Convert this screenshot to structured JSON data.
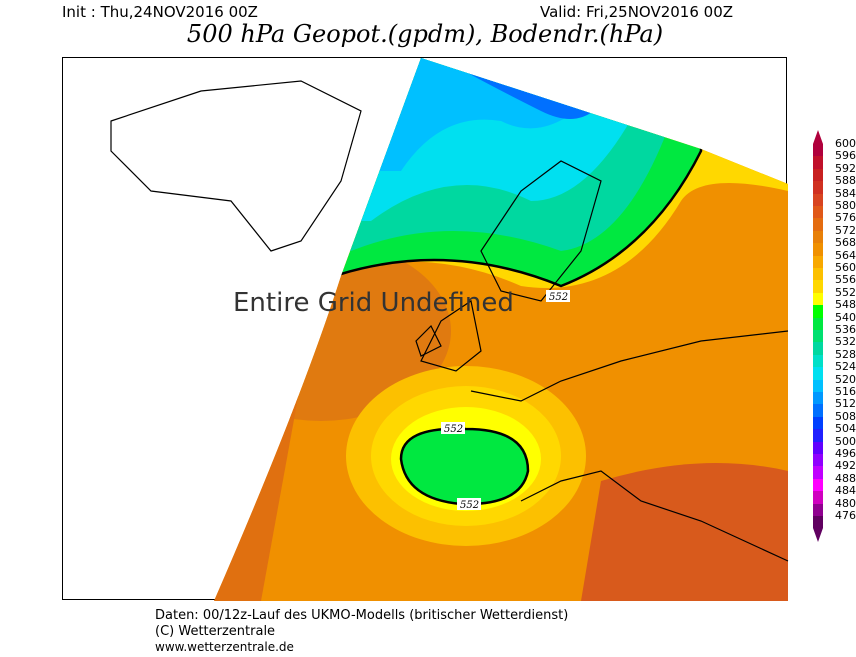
{
  "header": {
    "init": "Init : Thu,24NOV2016 00Z",
    "valid": "Valid: Fri,25NOV2016 00Z",
    "title": "500 hPa Geopot.(gpdm), Bodendr.(hPa)"
  },
  "map": {
    "overlay_text": "Entire Grid Undefined",
    "contour_labels": [
      "552",
      "552",
      "552"
    ]
  },
  "legend": {
    "labels": [
      "600",
      "596",
      "592",
      "588",
      "584",
      "580",
      "576",
      "572",
      "568",
      "564",
      "560",
      "556",
      "552",
      "548",
      "540",
      "536",
      "532",
      "528",
      "524",
      "520",
      "516",
      "512",
      "508",
      "504",
      "500",
      "496",
      "492",
      "488",
      "484",
      "480",
      "476"
    ],
    "colors": [
      "#b0003c",
      "#c0102a",
      "#c82020",
      "#d03020",
      "#d84420",
      "#e05818",
      "#e46c10",
      "#e88008",
      "#f09000",
      "#f8a800",
      "#fcc000",
      "#ffd800",
      "#ffff00",
      "#00ff00",
      "#00e840",
      "#00e070",
      "#00d8a0",
      "#00e0c8",
      "#00e0f0",
      "#00c0ff",
      "#0098ff",
      "#0070ff",
      "#0040ff",
      "#2020ff",
      "#6000ff",
      "#9000ff",
      "#c000ff",
      "#ff00ff",
      "#d000c0",
      "#900090",
      "#600060"
    ]
  },
  "footer": {
    "line1": "Daten: 00/12z-Lauf des UKMO-Modells (britischer Wetterdienst)",
    "line2": "(C) Wetterzentrale",
    "line3": "www.wetterzentrale.de"
  }
}
